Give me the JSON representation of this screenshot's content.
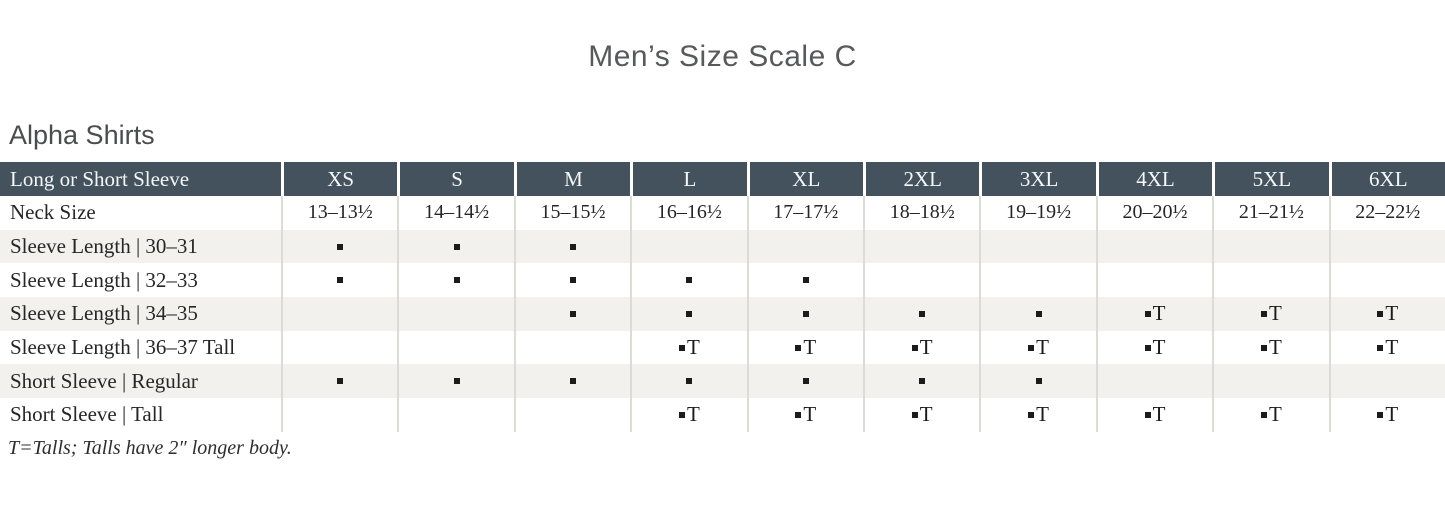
{
  "title": "Men’s Size Scale C",
  "section": {
    "heading": "Alpha Shirts"
  },
  "footnote": "T=Talls; Talls have 2″ longer body.",
  "table": {
    "corner_label": "Long or Short Sleeve",
    "size_headers": [
      "XS",
      "S",
      "M",
      "L",
      "XL",
      "2XL",
      "3XL",
      "4XL",
      "5XL",
      "6XL"
    ],
    "rows": [
      {
        "label": "Neck Size",
        "type": "text",
        "cells": [
          "13–13½",
          "14–14½",
          "15–15½",
          "16–16½",
          "17–17½",
          "18–18½",
          "19–19½",
          "20–20½",
          "21–21½",
          "22–22½"
        ]
      },
      {
        "label": "Sleeve Length  |  30–31",
        "type": "marks",
        "cells": [
          "dot",
          "dot",
          "dot",
          "",
          "",
          "",
          "",
          "",
          "",
          ""
        ]
      },
      {
        "label": "Sleeve Length  |  32–33",
        "type": "marks",
        "cells": [
          "dot",
          "dot",
          "dot",
          "dot",
          "dot",
          "",
          "",
          "",
          "",
          ""
        ]
      },
      {
        "label": "Sleeve Length  |  34–35",
        "type": "marks",
        "cells": [
          "",
          "",
          "dot",
          "dot",
          "dot",
          "dot",
          "dot",
          "tall",
          "tall",
          "tall"
        ]
      },
      {
        "label": "Sleeve Length  |  36–37 Tall",
        "type": "marks",
        "cells": [
          "",
          "",
          "",
          "tall",
          "tall",
          "tall",
          "tall",
          "tall",
          "tall",
          "tall"
        ]
      },
      {
        "label": "Short Sleeve  |  Regular",
        "type": "marks",
        "cells": [
          "dot",
          "dot",
          "dot",
          "dot",
          "dot",
          "dot",
          "dot",
          "",
          "",
          ""
        ]
      },
      {
        "label": "Short Sleeve  |  Tall",
        "type": "marks",
        "cells": [
          "",
          "",
          "",
          "tall",
          "tall",
          "tall",
          "tall",
          "tall",
          "tall",
          "tall"
        ]
      }
    ],
    "marks": {
      "available_glyph": "▪",
      "tall_glyph": "▪T"
    }
  },
  "colors": {
    "header_bg": "#44525d",
    "row_alt_bg": "#f3f1ee",
    "row_bg": "#ffffff",
    "divider": "#dedbd6",
    "header_text": "#f4f6f7",
    "body_text": "#262626",
    "title_text": "#58595b",
    "mark": "#1c1c1c"
  }
}
